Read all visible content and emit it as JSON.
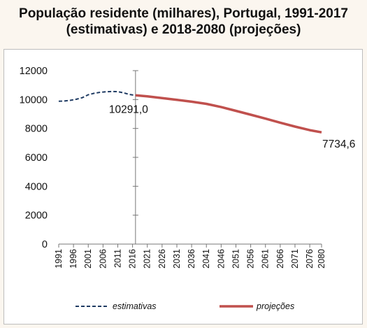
{
  "title": {
    "line1": "População residente (milhares), Portugal, 1991-2017",
    "line2": "(estimativas) e 2018-2080 (projeções)"
  },
  "chart_data": {
    "type": "line",
    "ylim": [
      0,
      12000
    ],
    "yticks": [
      "0",
      "2000",
      "4000",
      "6000",
      "8000",
      "10000",
      "12000"
    ],
    "xlim": [
      1991,
      2080
    ],
    "xticks": [
      "1991",
      "1996",
      "2001",
      "2006",
      "2011",
      "2016",
      "2021",
      "2026",
      "2031",
      "2036",
      "2041",
      "2046",
      "2051",
      "2056",
      "2061",
      "2066",
      "2071",
      "2076",
      "2080"
    ],
    "divider_year": 2017,
    "grid": false,
    "legend_position": "bottom",
    "series": [
      {
        "name": "estimativas",
        "style": "dashed",
        "color": "#1f3b63",
        "x": [
          1991,
          1993,
          1995,
          1997,
          1999,
          2001,
          2003,
          2005,
          2007,
          2009,
          2011,
          2013,
          2015,
          2017
        ],
        "values": [
          9880,
          9900,
          9950,
          10020,
          10130,
          10330,
          10430,
          10500,
          10540,
          10560,
          10550,
          10460,
          10350,
          10291
        ]
      },
      {
        "name": "projeções",
        "style": "solid",
        "color": "#c0504d",
        "x": [
          2017,
          2021,
          2026,
          2031,
          2036,
          2041,
          2046,
          2051,
          2056,
          2061,
          2066,
          2071,
          2076,
          2080
        ],
        "values": [
          10291,
          10220,
          10100,
          9980,
          9850,
          9700,
          9480,
          9220,
          8950,
          8680,
          8400,
          8130,
          7880,
          7734.6
        ]
      }
    ],
    "annotations": [
      {
        "text": "10291,0",
        "x": 2017,
        "y": 10291
      },
      {
        "text": "7734,6",
        "x": 2080,
        "y": 7734.6
      }
    ]
  }
}
